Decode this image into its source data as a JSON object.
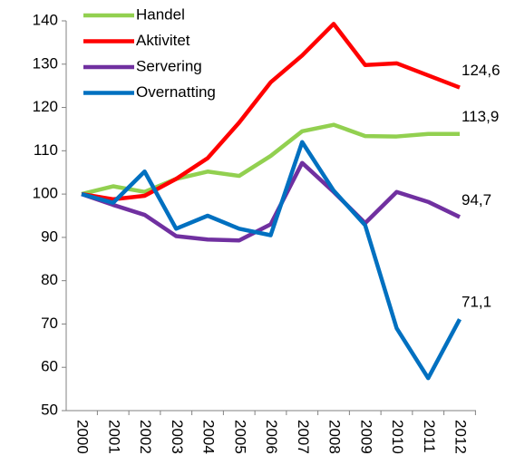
{
  "chart_data": {
    "type": "line",
    "categories": [
      "2000",
      "2001",
      "2002",
      "2003",
      "2004",
      "2005",
      "2006",
      "2007",
      "2008",
      "2009",
      "2010",
      "2011",
      "2012"
    ],
    "series": [
      {
        "name": "Handel",
        "color": "#92d050",
        "values": [
          100,
          101.8,
          100.5,
          103.5,
          105.2,
          104.2,
          108.8,
          114.5,
          116,
          113.4,
          113.3,
          113.9,
          113.9
        ],
        "value_labels": [
          null,
          null,
          null,
          null,
          null,
          null,
          null,
          null,
          null,
          null,
          null,
          null,
          "113,9"
        ]
      },
      {
        "name": "Aktivitet",
        "color": "#ff0000",
        "values": [
          100,
          98.8,
          99.6,
          103.5,
          108.3,
          116.5,
          125.8,
          132,
          139.3,
          129.8,
          130.2,
          127.4,
          124.6
        ],
        "value_labels": [
          null,
          null,
          null,
          null,
          null,
          null,
          null,
          null,
          null,
          null,
          null,
          null,
          "124,6"
        ]
      },
      {
        "name": "Servering",
        "color": "#7030a0",
        "values": [
          100,
          97.5,
          95.2,
          90.3,
          89.5,
          89.3,
          93,
          107.2,
          100.5,
          93.3,
          100.5,
          98.2,
          94.7
        ],
        "value_labels": [
          null,
          null,
          null,
          null,
          null,
          null,
          null,
          null,
          null,
          null,
          null,
          null,
          "94,7"
        ]
      },
      {
        "name": "Overnatting",
        "color": "#0070c0",
        "values": [
          100,
          98,
          105.2,
          92,
          95,
          92,
          90.5,
          112,
          100.8,
          92.8,
          69,
          57.5,
          71.1
        ],
        "value_labels": [
          null,
          null,
          null,
          null,
          null,
          null,
          null,
          null,
          null,
          null,
          null,
          null,
          "71,1"
        ]
      }
    ],
    "ylim": [
      50,
      140
    ],
    "yticks": [
      50,
      60,
      70,
      80,
      90,
      100,
      110,
      120,
      130,
      140
    ],
    "grid": false,
    "legend": "top-left"
  }
}
